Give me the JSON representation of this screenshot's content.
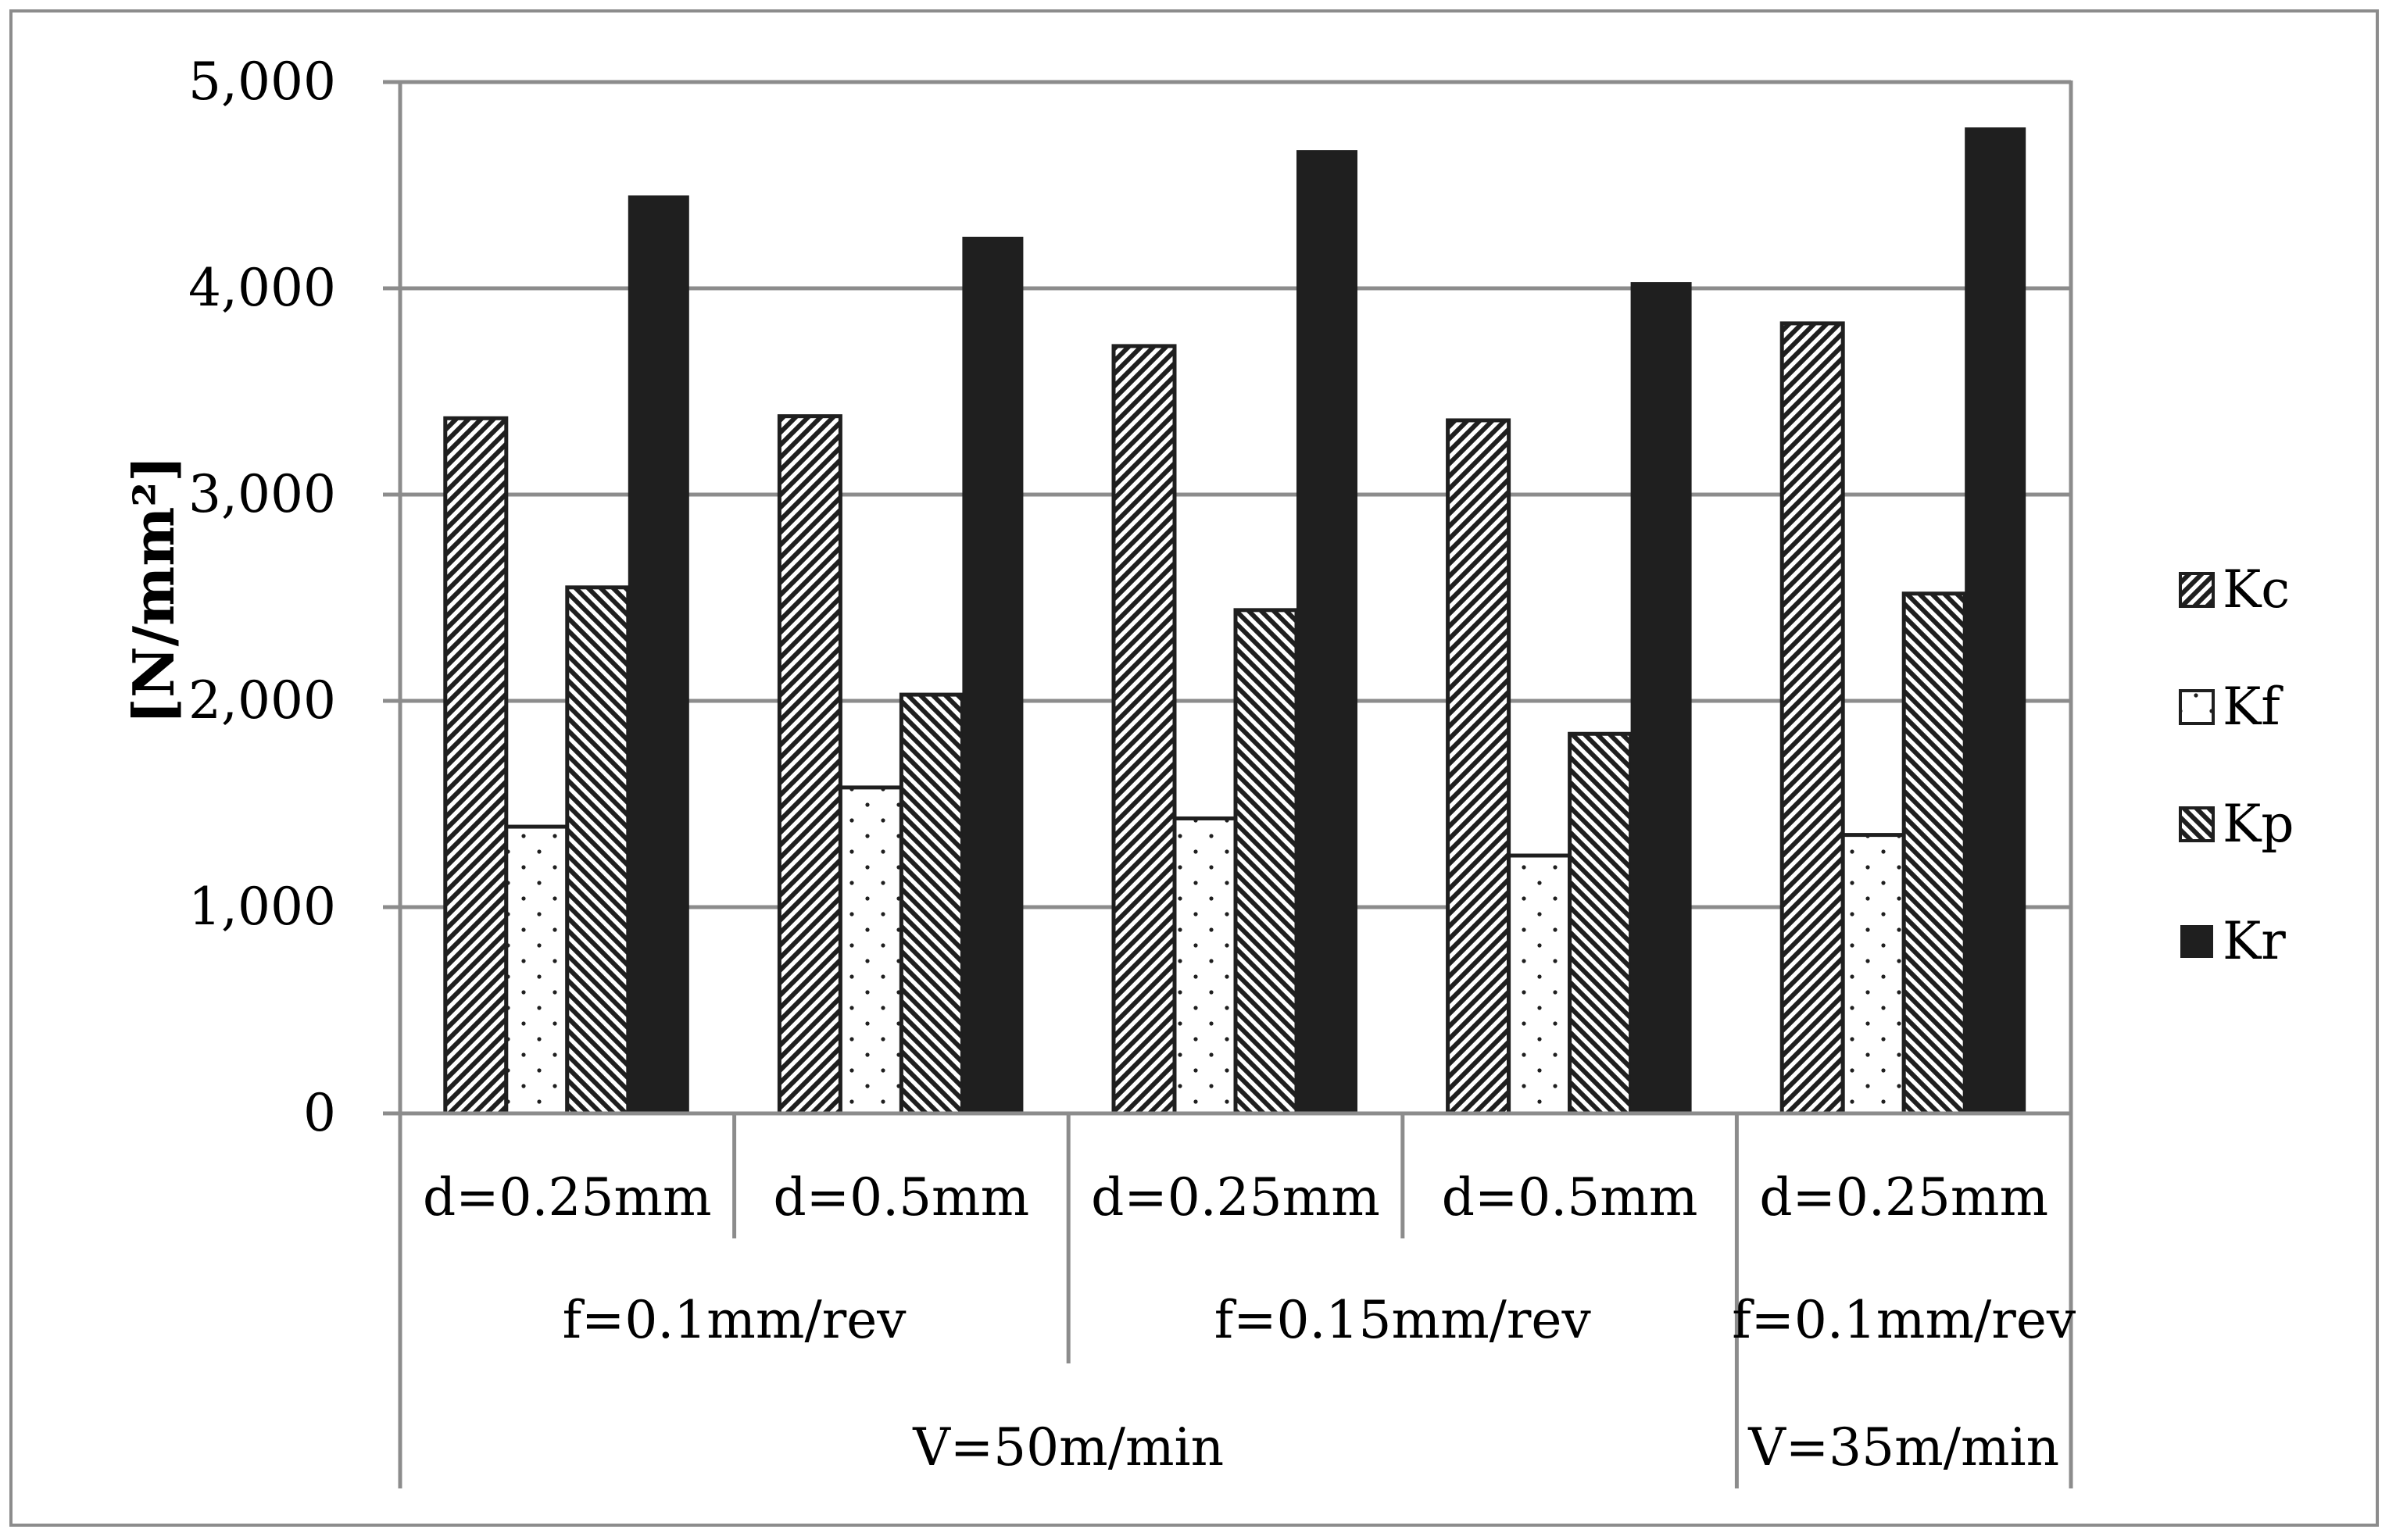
{
  "chart_data": {
    "type": "bar",
    "title": "",
    "xlabel": "",
    "ylabel": "[N/mm²]",
    "ylim": [
      0,
      5000
    ],
    "yticks": [
      0,
      1000,
      2000,
      3000,
      4000,
      5000
    ],
    "ytick_labels": [
      "0",
      "1,000",
      "2,000",
      "3,000",
      "4,000",
      "5,000"
    ],
    "grid": true,
    "legend_position": "right",
    "categories": [
      "d=0.25mm",
      "d=0.5mm",
      "d=0.25mm",
      "d=0.5mm",
      "d=0.25mm"
    ],
    "feed_groups": [
      {
        "label": "f=0.1mm/rev",
        "span": 2
      },
      {
        "label": "f=0.15mm/rev",
        "span": 2
      },
      {
        "label": "f=0.1mm/rev",
        "span": 1
      }
    ],
    "speed_groups": [
      {
        "label": "V=50m/min",
        "span": 4
      },
      {
        "label": "V=35m/min",
        "span": 1
      }
    ],
    "series": [
      {
        "name": "Kc",
        "pattern": "diag-fine",
        "values": [
          3370,
          3380,
          3720,
          3360,
          3830
        ]
      },
      {
        "name": "Kf",
        "pattern": "dots",
        "values": [
          1390,
          1580,
          1430,
          1250,
          1350
        ]
      },
      {
        "name": "Kp",
        "pattern": "diag-back",
        "values": [
          2550,
          2030,
          2440,
          1840,
          2520
        ]
      },
      {
        "name": "Kr",
        "pattern": "solid",
        "values": [
          4450,
          4250,
          4670,
          4030,
          4780
        ]
      }
    ],
    "colors": {
      "bar_fill": "#1f1f1f",
      "grid": "#8c8c8c",
      "axis": "#8c8c8c",
      "border": "#8c8c8c"
    }
  }
}
